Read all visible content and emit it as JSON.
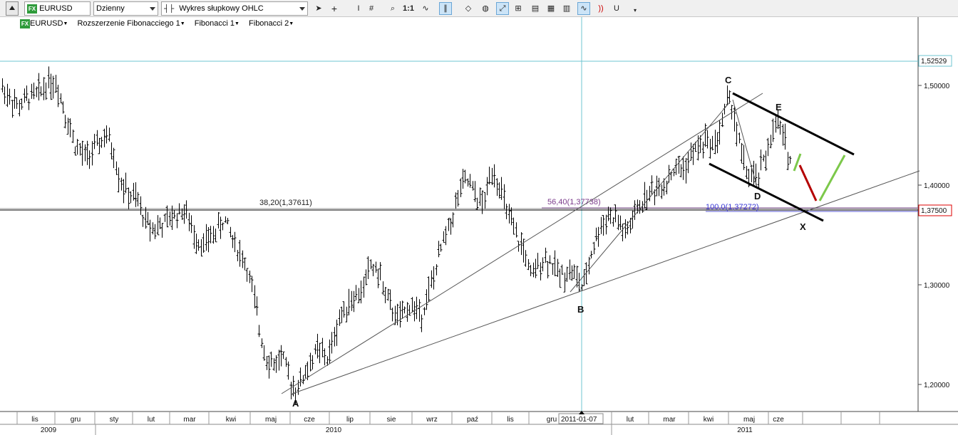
{
  "toolbar": {
    "symbol": "EURUSD",
    "interval": "Dzienny",
    "chart_type": "Wykres słupkowy OHLC",
    "zoom_label": "1:1",
    "icons": [
      "collapse-up-icon",
      "cursor-arrow-icon",
      "crosshair-icon",
      "text-cursor-icon",
      "grid-hash-icon",
      "zoom-icon",
      "zoom-1to1-icon",
      "indicator-wave-icon",
      "parallel-lines-icon",
      "eraser-icon",
      "paint-icon",
      "trendline-icon",
      "objects-icon",
      "template-icon",
      "layout-icon",
      "wave-highlight-icon",
      "signal-icon",
      "magnet-icon",
      "overflow-icon"
    ]
  },
  "legend": {
    "symbol": "EURUSD",
    "items": [
      "Rozszerzenie Fibonacciego 1",
      "Fibonacci 1",
      "Fibonacci 2"
    ]
  },
  "chart_data": {
    "type": "ohlc",
    "instrument": "EURUSD",
    "interval": "Dzienny",
    "ylim": [
      1.17,
      1.56
    ],
    "yticks": [
      "1,50000",
      "1,40000",
      "1,30000",
      "1,20000"
    ],
    "current_price_label": "1,52529",
    "level_price_label": "1,37500",
    "crosshair_date": "2011-01-07",
    "x_months": [
      "lis",
      "gru",
      "sty",
      "lut",
      "mar",
      "kwi",
      "maj",
      "cze",
      "lip",
      "sie",
      "wrz",
      "paź",
      "lis",
      "gru",
      "lut",
      "mar",
      "kwi",
      "maj",
      "cze"
    ],
    "x_years": [
      "2009",
      "2010",
      "2011"
    ],
    "fib_labels": [
      "38,20(1,37611)",
      "56,40(1,37738)",
      "100,0(1,37272)"
    ],
    "wave_labels": [
      "A",
      "B",
      "C",
      "D",
      "E",
      "X"
    ],
    "path_points": [
      [
        0,
        1.5
      ],
      [
        12,
        1.49
      ],
      [
        25,
        1.478
      ],
      [
        40,
        1.488
      ],
      [
        55,
        1.493
      ],
      [
        68,
        1.505
      ],
      [
        80,
        1.5
      ],
      [
        92,
        1.47
      ],
      [
        105,
        1.44
      ],
      [
        118,
        1.428
      ],
      [
        132,
        1.435
      ],
      [
        148,
        1.45
      ],
      [
        158,
        1.435
      ],
      [
        168,
        1.405
      ],
      [
        180,
        1.39
      ],
      [
        192,
        1.385
      ],
      [
        205,
        1.362
      ],
      [
        218,
        1.357
      ],
      [
        232,
        1.362
      ],
      [
        245,
        1.37
      ],
      [
        258,
        1.375
      ],
      [
        272,
        1.35
      ],
      [
        285,
        1.34
      ],
      [
        298,
        1.35
      ],
      [
        315,
        1.365
      ],
      [
        330,
        1.34
      ],
      [
        345,
        1.32
      ],
      [
        355,
        1.29
      ],
      [
        365,
        1.25
      ],
      [
        375,
        1.225
      ],
      [
        385,
        1.22
      ],
      [
        395,
        1.23
      ],
      [
        405,
        1.205
      ],
      [
        416,
        1.195
      ],
      [
        430,
        1.215
      ],
      [
        445,
        1.235
      ],
      [
        460,
        1.225
      ],
      [
        475,
        1.265
      ],
      [
        490,
        1.285
      ],
      [
        505,
        1.29
      ],
      [
        520,
        1.32
      ],
      [
        532,
        1.31
      ],
      [
        545,
        1.28
      ],
      [
        560,
        1.265
      ],
      [
        575,
        1.28
      ],
      [
        590,
        1.27
      ],
      [
        605,
        1.3
      ],
      [
        620,
        1.34
      ],
      [
        635,
        1.37
      ],
      [
        645,
        1.395
      ],
      [
        655,
        1.405
      ],
      [
        665,
        1.39
      ],
      [
        678,
        1.38
      ],
      [
        690,
        1.418
      ],
      [
        700,
        1.4
      ],
      [
        712,
        1.37
      ],
      [
        725,
        1.345
      ],
      [
        735,
        1.335
      ],
      [
        745,
        1.305
      ],
      [
        758,
        1.325
      ],
      [
        770,
        1.325
      ],
      [
        785,
        1.31
      ],
      [
        800,
        1.315
      ],
      [
        810,
        1.305
      ],
      [
        818,
        1.295
      ],
      [
        828,
        1.33
      ],
      [
        840,
        1.355
      ],
      [
        852,
        1.37
      ],
      [
        865,
        1.365
      ],
      [
        878,
        1.35
      ],
      [
        890,
        1.37
      ],
      [
        902,
        1.385
      ],
      [
        915,
        1.395
      ],
      [
        930,
        1.4
      ],
      [
        945,
        1.415
      ],
      [
        960,
        1.418
      ],
      [
        975,
        1.435
      ],
      [
        990,
        1.445
      ],
      [
        1002,
        1.44
      ],
      [
        1012,
        1.46
      ],
      [
        1020,
        1.487
      ],
      [
        1028,
        1.478
      ],
      [
        1034,
        1.45
      ],
      [
        1042,
        1.425
      ],
      [
        1052,
        1.405
      ],
      [
        1062,
        1.408
      ],
      [
        1072,
        1.425
      ],
      [
        1082,
        1.45
      ],
      [
        1092,
        1.462
      ],
      [
        1100,
        1.445
      ],
      [
        1110,
        1.42
      ]
    ],
    "projection": [
      [
        1110,
        1.42
      ],
      [
        1142,
        1.38
      ],
      [
        1185,
        1.43
      ]
    ]
  }
}
